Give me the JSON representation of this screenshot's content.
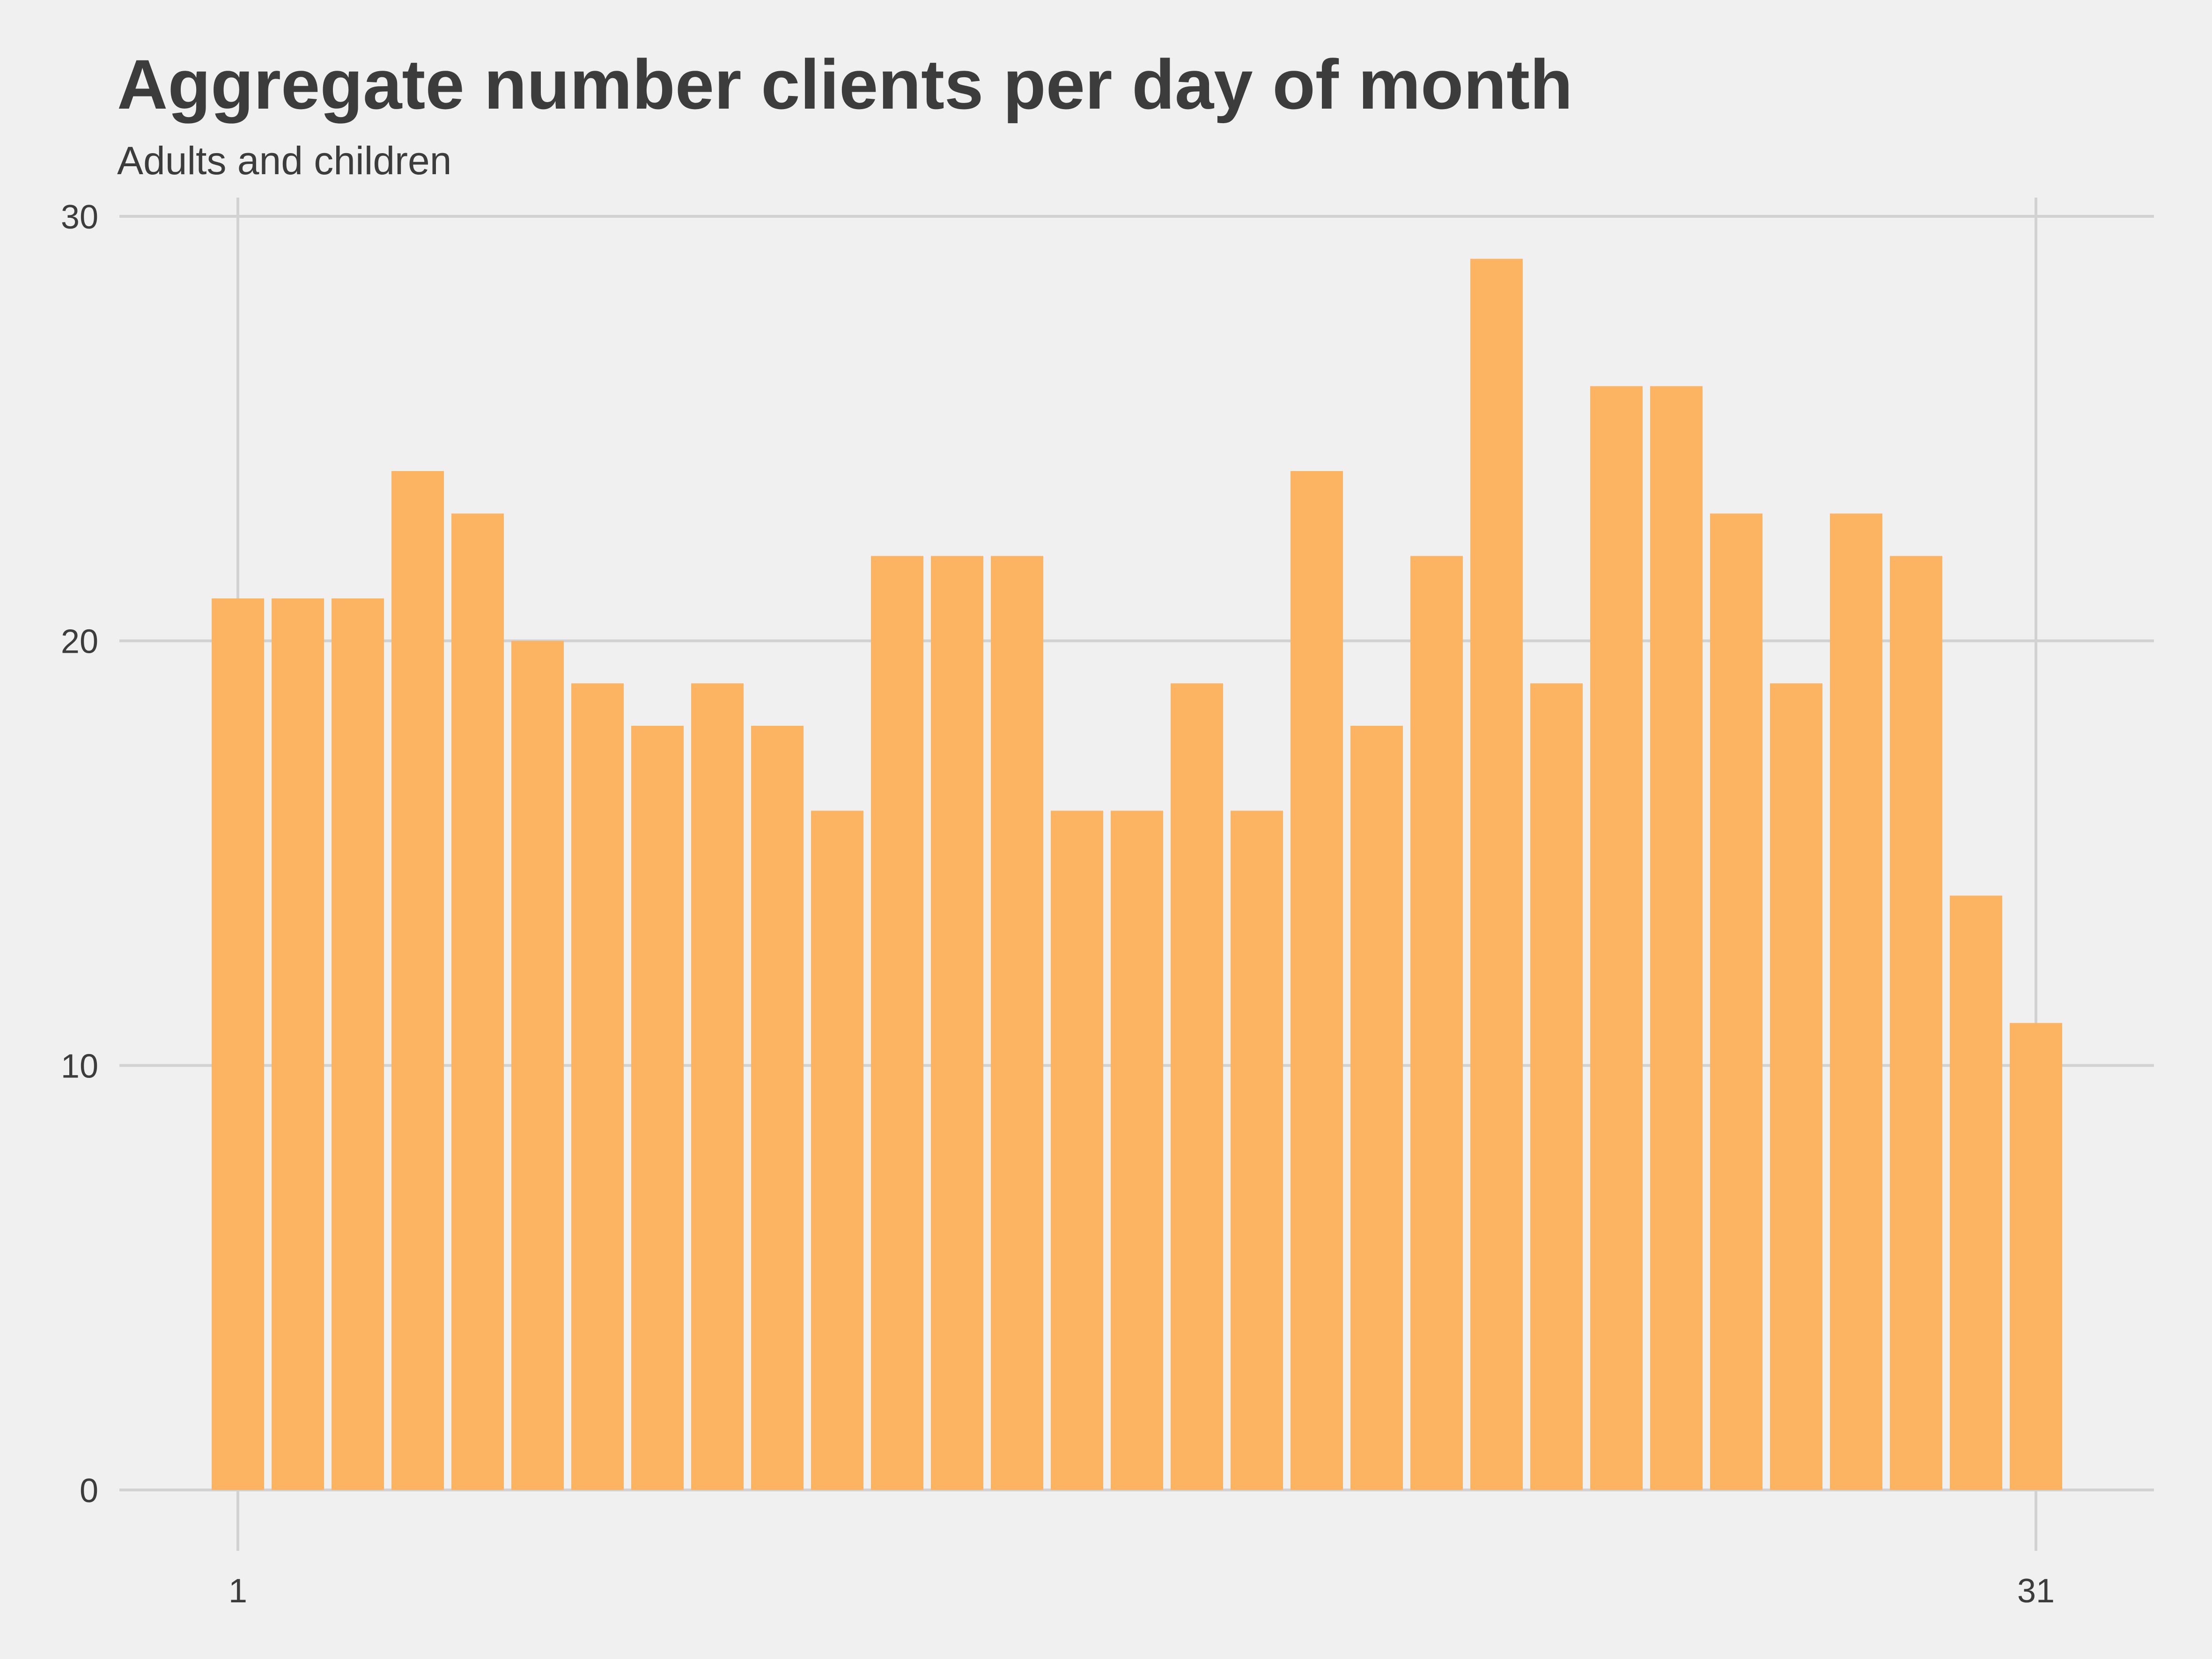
{
  "chart_data": {
    "type": "bar",
    "title": "Aggregate number clients per day of month",
    "subtitle": "Adults and children",
    "xlabel": "",
    "ylabel": "",
    "x": [
      1,
      2,
      3,
      4,
      5,
      6,
      7,
      8,
      9,
      10,
      11,
      12,
      13,
      14,
      15,
      16,
      17,
      18,
      19,
      20,
      21,
      22,
      23,
      24,
      25,
      26,
      27,
      28,
      29,
      30,
      31
    ],
    "values": [
      21,
      21,
      21,
      24,
      23,
      20,
      19,
      18,
      19,
      18,
      16,
      22,
      22,
      22,
      16,
      16,
      19,
      16,
      24,
      18,
      22,
      29,
      19,
      26,
      26,
      23,
      19,
      23,
      22,
      14,
      11
    ],
    "xticks": [
      "1",
      "31"
    ],
    "yticks": [
      "0",
      "10",
      "20",
      "30"
    ],
    "ylim": [
      0,
      30
    ],
    "grid": true,
    "legend": "none",
    "colors": {
      "bar": "#fdb462",
      "background": "#f0f0f0",
      "grid": "#d2d2d2",
      "text": "#3c3c3c"
    }
  }
}
